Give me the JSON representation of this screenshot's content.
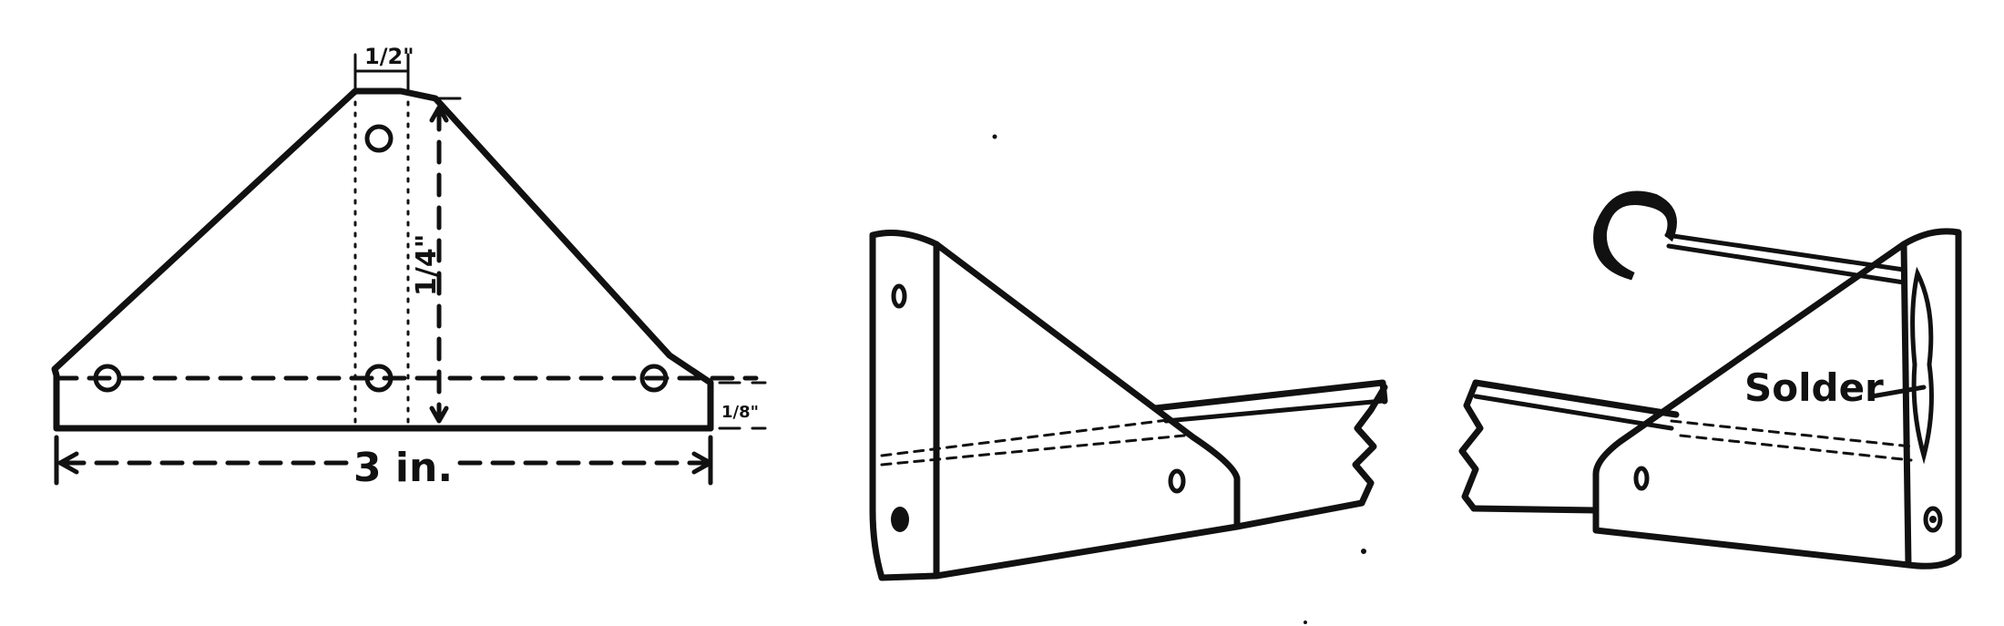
{
  "figure_1": {
    "width_label": "3 in.",
    "top_width_label": "1/2\"",
    "height_label": "1/4\"",
    "edge_label": "1/8\""
  },
  "figure_3": {
    "solder_label": "Solder"
  }
}
